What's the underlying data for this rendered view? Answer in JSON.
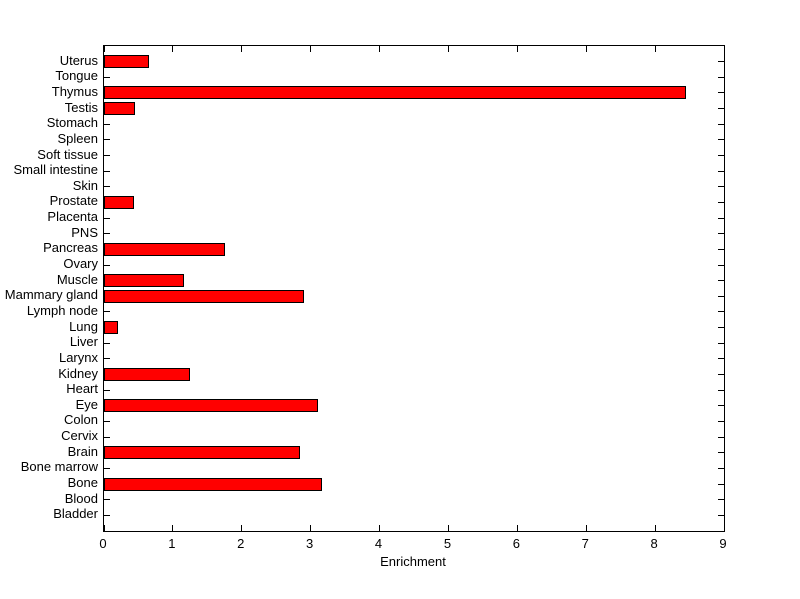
{
  "chart_data": {
    "type": "bar",
    "orientation": "horizontal",
    "title": "",
    "xlabel": "Enrichment",
    "ylabel": "",
    "xlim": [
      0,
      9
    ],
    "xticks": [
      "0",
      "1",
      "2",
      "3",
      "4",
      "5",
      "6",
      "7",
      "8",
      "9"
    ],
    "grid": false,
    "legend": null,
    "bar_color": "#ff0000",
    "bar_edge_color": "#000000",
    "axis_color": "#000000",
    "background_color": "#ffffff",
    "categories": [
      "Uterus",
      "Tongue",
      "Thymus",
      "Testis",
      "Stomach",
      "Spleen",
      "Soft tissue",
      "Small intestine",
      "Skin",
      "Prostate",
      "Placenta",
      "PNS",
      "Pancreas",
      "Ovary",
      "Muscle",
      "Mammary gland",
      "Lymph node",
      "Lung",
      "Liver",
      "Larynx",
      "Kidney",
      "Heart",
      "Eye",
      "Colon",
      "Cervix",
      "Brain",
      "Bone marrow",
      "Bone",
      "Blood",
      "Bladder"
    ],
    "values": [
      0.65,
      0,
      8.45,
      0.45,
      0,
      0,
      0,
      0,
      0,
      0.44,
      0,
      0,
      1.76,
      0,
      1.16,
      2.9,
      0,
      0.21,
      0,
      0,
      1.25,
      0,
      3.1,
      0,
      0,
      2.85,
      0,
      3.17,
      0,
      0
    ]
  }
}
